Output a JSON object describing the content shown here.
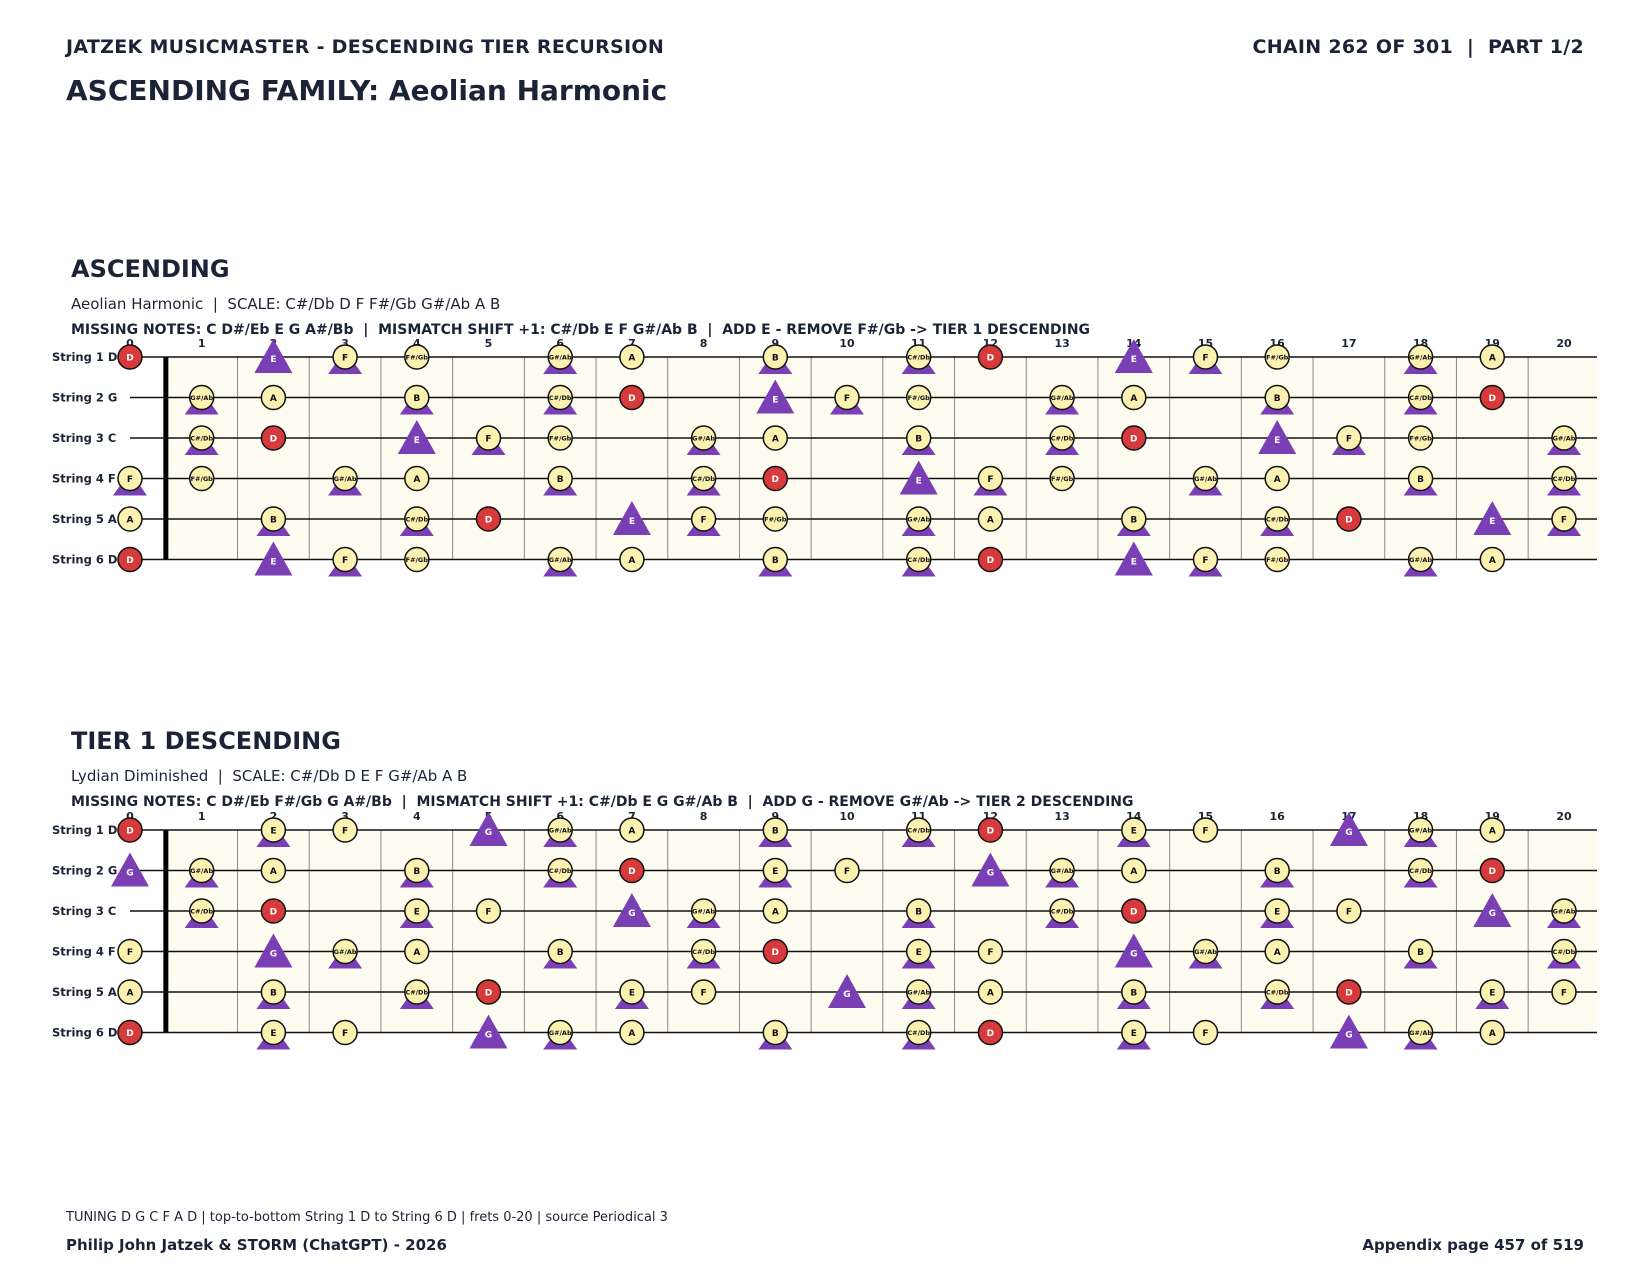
{
  "header": {
    "left": "JATZEK MUSICMASTER - DESCENDING TIER RECURSION",
    "right": "CHAIN 262 OF 301  |  PART 1/2",
    "family": "ASCENDING FAMILY: Aeolian Harmonic"
  },
  "fret_numbers": [
    "0",
    "1",
    "2",
    "3",
    "4",
    "5",
    "6",
    "7",
    "8",
    "9",
    "10",
    "11",
    "12",
    "13",
    "14",
    "15",
    "16",
    "17",
    "18",
    "19",
    "20"
  ],
  "string_labels": [
    "String 1 D",
    "String 2 G",
    "String 3 C",
    "String 4 F",
    "String 5 A",
    "String 6 D"
  ],
  "legend_colors": {
    "root": "#d63a3a",
    "scale": "#fbf1b0",
    "marker": "#7b3fb5",
    "board": "#fefcf0"
  },
  "sections": [
    {
      "title": "ASCENDING",
      "subtitle": "Aeolian Harmonic  |  SCALE: C#/Db D F F#/Gb G#/Ab A B",
      "missing": "MISSING NOTES: C D#/Eb E G A#/Bb  |  MISMATCH SHIFT +1: C#/Db E F G#/Ab B  |  ADD E - REMOVE F#/Gb -> TIER 1 DESCENDING",
      "root": "D",
      "scale_notes": [
        "C#/Db",
        "D",
        "F",
        "F#/Gb",
        "G#/Ab",
        "A",
        "B"
      ],
      "marked_notes": [
        "C#/Db",
        "E",
        "F",
        "G#/Ab",
        "B"
      ],
      "added_note": "E"
    },
    {
      "title": "TIER 1 DESCENDING",
      "subtitle": "Lydian Diminished  |  SCALE: C#/Db D E F G#/Ab A B",
      "missing": "MISSING NOTES: C D#/Eb F#/Gb G A#/Bb  |  MISMATCH SHIFT +1: C#/Db E G G#/Ab B  |  ADD G - REMOVE G#/Ab -> TIER 2 DESCENDING",
      "root": "D",
      "scale_notes": [
        "C#/Db",
        "D",
        "E",
        "F",
        "G#/Ab",
        "A",
        "B"
      ],
      "marked_notes": [
        "C#/Db",
        "E",
        "G",
        "G#/Ab",
        "B"
      ],
      "added_note": "G"
    }
  ],
  "tuning": [
    "D",
    "G",
    "C",
    "F",
    "A",
    "D"
  ],
  "chromatic": [
    "C",
    "C#/Db",
    "D",
    "D#/Eb",
    "E",
    "F",
    "F#/Gb",
    "G",
    "G#/Ab",
    "A",
    "A#/Bb",
    "B"
  ],
  "footer": {
    "note": "TUNING D G C F A D | top-to-bottom String 1 D to String 6 D | frets 0-20 | source Periodical 3",
    "author": "Philip John Jatzek & STORM (ChatGPT) - 2026",
    "page": "Appendix page 457 of 519"
  }
}
